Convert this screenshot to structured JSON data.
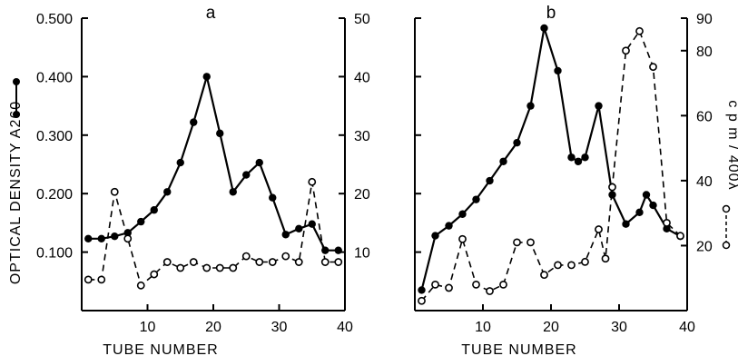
{
  "chart_data": [
    {
      "type": "line",
      "title": "a",
      "xlabel": "TUBE NUMBER",
      "ylabel": "OPTICAL DENSITY A260",
      "y2label": "",
      "xlim": [
        0,
        40
      ],
      "ylim": [
        0,
        0.5
      ],
      "y2lim": [
        0,
        50
      ],
      "xticks": [
        "10",
        "20",
        "30",
        "40"
      ],
      "yticks": [
        "0.100",
        "0.200",
        "0.300",
        "0.400",
        "0.500"
      ],
      "y2ticks": [
        "10",
        "20",
        "30",
        "40",
        "50"
      ],
      "grid": false,
      "series": [
        {
          "axis": "left",
          "style": "solid-filled",
          "x": [
            1,
            3,
            5,
            7,
            9,
            11,
            13,
            15,
            17,
            19,
            21,
            23,
            25,
            27,
            29,
            31,
            33,
            35,
            37,
            39
          ],
          "y": [
            0.123,
            0.123,
            0.127,
            0.133,
            0.152,
            0.172,
            0.203,
            0.253,
            0.322,
            0.4,
            0.303,
            0.203,
            0.232,
            0.253,
            0.193,
            0.13,
            0.14,
            0.148,
            0.103,
            0.103
          ]
        },
        {
          "axis": "right",
          "style": "dashed-open",
          "x": [
            1,
            3,
            5,
            7,
            9,
            11,
            13,
            15,
            17,
            19,
            21,
            23,
            25,
            27,
            29,
            31,
            33,
            35,
            37,
            39
          ],
          "y": [
            5.3,
            5.3,
            20.3,
            12.3,
            4.3,
            6.2,
            8.3,
            7.3,
            8.3,
            7.3,
            7.3,
            7.3,
            9.3,
            8.3,
            8.3,
            9.3,
            8.3,
            22,
            8.3,
            8.3
          ]
        }
      ]
    },
    {
      "type": "line",
      "title": "b",
      "xlabel": "TUBE NUMBER",
      "ylabel": "",
      "y2label": "c p m / 400λ",
      "xlim": [
        0,
        40
      ],
      "ylim": [
        0,
        0.5
      ],
      "y2lim": [
        0,
        90
      ],
      "xticks": [
        "10",
        "20",
        "30",
        "40"
      ],
      "yticks": [
        "0.100",
        "0.200",
        "0.300",
        "0.400",
        "0.500"
      ],
      "y2ticks": [
        "20",
        "40",
        "60",
        "80",
        "90"
      ],
      "grid": false,
      "series": [
        {
          "axis": "left",
          "style": "solid-filled",
          "x": [
            1,
            3,
            5,
            7,
            9,
            11,
            13,
            15,
            17,
            19,
            21,
            23,
            24,
            25,
            27,
            29,
            31,
            33,
            34,
            35,
            37,
            39
          ],
          "y": [
            0.035,
            0.128,
            0.145,
            0.165,
            0.19,
            0.222,
            0.255,
            0.287,
            0.35,
            0.483,
            0.41,
            0.262,
            0.255,
            0.262,
            0.35,
            0.198,
            0.148,
            0.168,
            0.198,
            0.18,
            0.14,
            0.127
          ]
        },
        {
          "axis": "right",
          "style": "dashed-open",
          "x": [
            1,
            3,
            5,
            7,
            9,
            11,
            13,
            15,
            17,
            19,
            21,
            23,
            25,
            27,
            28,
            29,
            31,
            33,
            35,
            37,
            39
          ],
          "y": [
            3,
            8,
            7,
            22,
            8,
            6,
            8,
            21,
            21,
            11,
            14,
            14,
            15,
            25,
            16,
            38,
            80,
            86,
            75,
            27,
            23
          ]
        }
      ]
    }
  ]
}
